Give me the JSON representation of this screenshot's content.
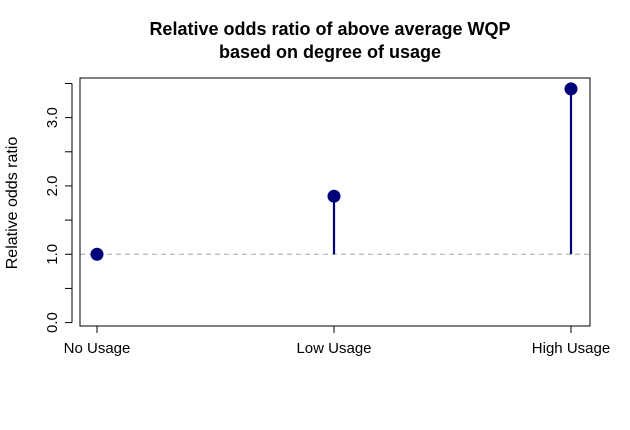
{
  "chart_data": {
    "type": "lollipop",
    "title_line1": "Relative odds ratio of above average WQP",
    "title_line2": "based on degree of usage",
    "xlabel": "",
    "ylabel": "Relative odds ratio",
    "categories": [
      "No Usage",
      "Low Usage",
      "High Usage"
    ],
    "values": [
      1.0,
      1.85,
      3.42
    ],
    "baseline": 1.0,
    "ylim": [
      -0.05,
      3.58
    ],
    "yticks": [
      0.0,
      1.0,
      2.0,
      3.0
    ],
    "ytick_labels": [
      "0.0",
      "1.0",
      "2.0",
      "3.0"
    ],
    "yminor_ticks": [
      0.5,
      1.5,
      2.5,
      3.5
    ],
    "grid": false,
    "colors": {
      "stem": "#00007a",
      "point": "#00007a",
      "baseline": "#b8b8b8",
      "axis": "#000000"
    }
  }
}
